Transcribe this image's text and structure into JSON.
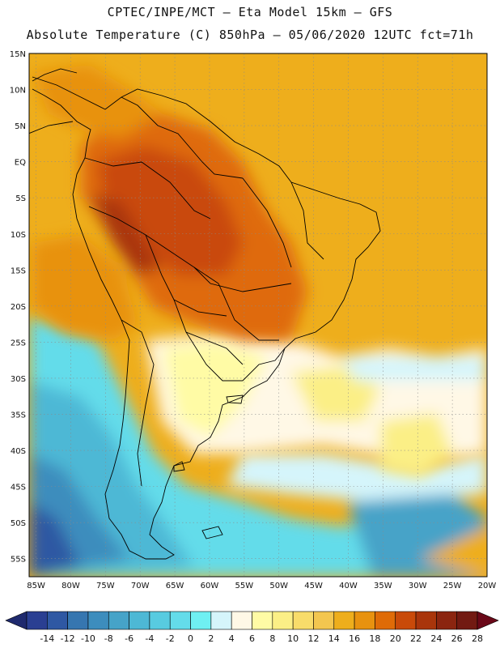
{
  "header": {
    "line1": "CPTEC/INPE/MCT –  Eta Model 15km – GFS",
    "line2": "Absolute Temperature (C) 850hPa – 05/06/2020 12UTC fct=71h"
  },
  "map": {
    "lat_labels": [
      "15N",
      "10N",
      "5N",
      "EQ",
      "5S",
      "10S",
      "15S",
      "20S",
      "25S",
      "30S",
      "35S",
      "40S",
      "45S",
      "50S",
      "55S"
    ],
    "lon_labels": [
      "85W",
      "80W",
      "75W",
      "70W",
      "65W",
      "60W",
      "55W",
      "50W",
      "45W",
      "40W",
      "35W",
      "30W",
      "25W",
      "20W"
    ],
    "lat_range": [
      15,
      -57.5
    ],
    "lon_range": [
      -86,
      -20
    ]
  },
  "colorbar": {
    "labels": [
      "-14",
      "-12",
      "-10",
      "-8",
      "-6",
      "-4",
      "-2",
      "0",
      "2",
      "4",
      "6",
      "8",
      "10",
      "12",
      "14",
      "16",
      "18",
      "20",
      "22",
      "24",
      "26",
      "28"
    ],
    "colors": [
      "#2a3f92",
      "#2f58a3",
      "#3676b0",
      "#3d8dbd",
      "#46a3c8",
      "#4db8d5",
      "#58cbe0",
      "#64dcea",
      "#6ff0f2",
      "#d5f5fb",
      "#fff8e6",
      "#fffba5",
      "#fbef86",
      "#f8dc6a",
      "#f3c64f",
      "#eeae1c",
      "#e8920f",
      "#df6b07",
      "#c94a09",
      "#a9350b",
      "#8b2510",
      "#721a12"
    ],
    "left_arrow_color": "#1f2a6e",
    "right_arrow_color": "#6a0818"
  }
}
